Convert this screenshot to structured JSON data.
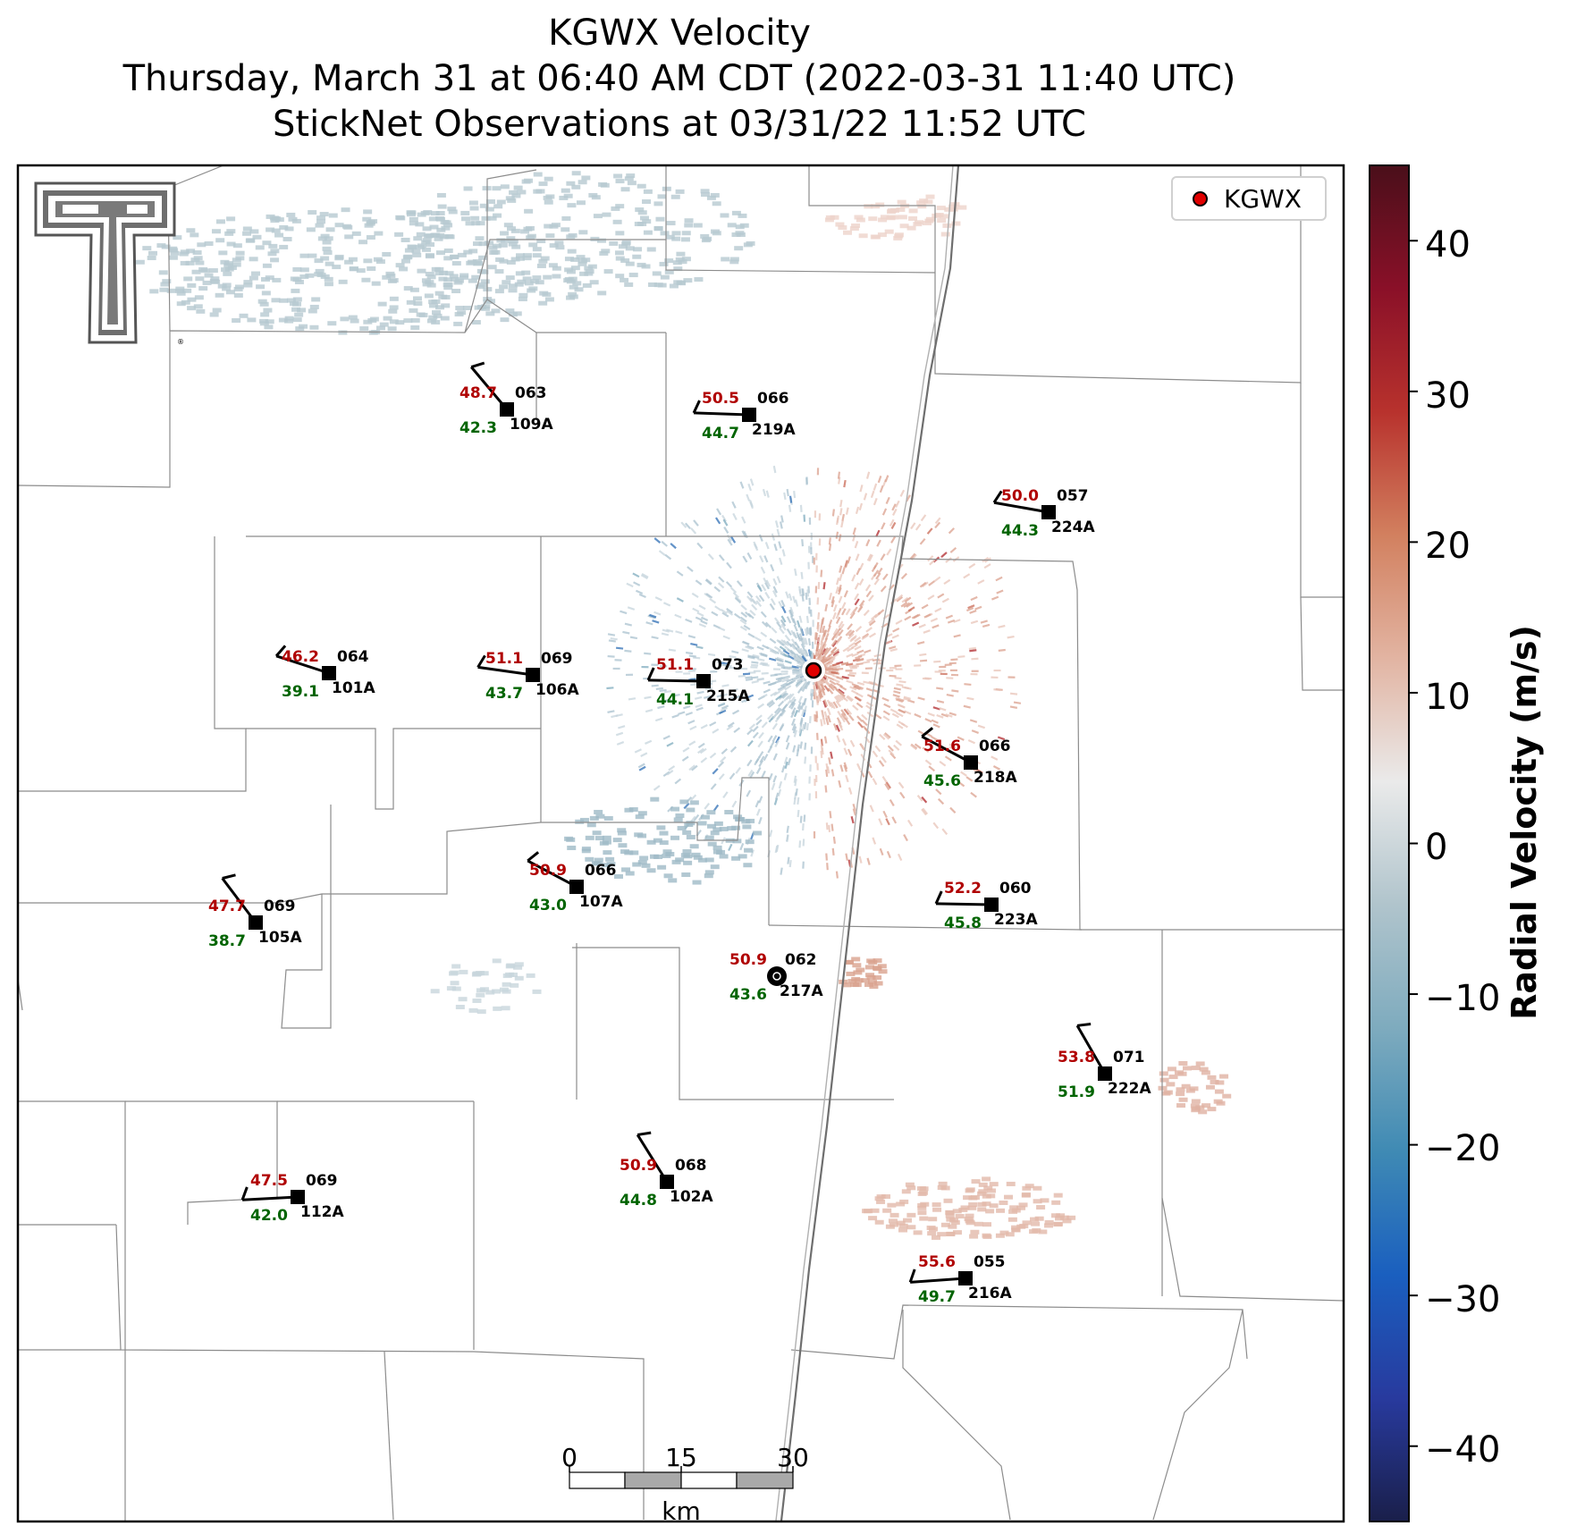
{
  "title": {
    "line1": "KGWX Velocity",
    "line2": "Thursday, March 31 at 06:40 AM CDT (2022-03-31 11:40 UTC)",
    "line3": "StickNet Observations at 03/31/22 11:52 UTC"
  },
  "legend": {
    "label": "KGWX",
    "marker_color": "#e00000"
  },
  "colorbar": {
    "label": "Radial Velocity (m/s)",
    "range": [
      -45,
      45
    ],
    "ticks": [
      "40",
      "30",
      "20",
      "10",
      "0",
      "−10",
      "−20",
      "−30",
      "−40"
    ],
    "colors": [
      "#4a0f1a",
      "#8a1028",
      "#b8322d",
      "#d2805f",
      "#e2b4a2",
      "#eaeaea",
      "#b0c4cc",
      "#7eabbe",
      "#3f8ab4",
      "#1a5fbf",
      "#283a9e",
      "#1a1f4a"
    ]
  },
  "scalebar": {
    "ticks": [
      "0",
      "15",
      "30"
    ],
    "unit": "km"
  },
  "logo": {
    "name": "Texas Tech Double T",
    "text": "TT"
  },
  "stations": [
    {
      "id": "109A",
      "temp": "48.7",
      "dew": "42.3",
      "pressure": "063",
      "marker": "square"
    },
    {
      "id": "219A",
      "temp": "50.5",
      "dew": "44.7",
      "pressure": "066",
      "marker": "square"
    },
    {
      "id": "224A",
      "temp": "50.0",
      "dew": "44.3",
      "pressure": "057",
      "marker": "square"
    },
    {
      "id": "101A",
      "temp": "46.2",
      "dew": "39.1",
      "pressure": "064",
      "marker": "square"
    },
    {
      "id": "106A",
      "temp": "51.1",
      "dew": "43.7",
      "pressure": "069",
      "marker": "square"
    },
    {
      "id": "215A",
      "temp": "51.1",
      "dew": "44.1",
      "pressure": "073",
      "marker": "square"
    },
    {
      "id": "218A",
      "temp": "51.6",
      "dew": "45.6",
      "pressure": "066",
      "marker": "square"
    },
    {
      "id": "105A",
      "temp": "47.7",
      "dew": "38.7",
      "pressure": "069",
      "marker": "square"
    },
    {
      "id": "107A",
      "temp": "50.9",
      "dew": "43.0",
      "pressure": "066",
      "marker": "square"
    },
    {
      "id": "223A",
      "temp": "52.2",
      "dew": "45.8",
      "pressure": "060",
      "marker": "square"
    },
    {
      "id": "217A",
      "temp": "50.9",
      "dew": "43.6",
      "pressure": "062",
      "marker": "calm"
    },
    {
      "id": "222A",
      "temp": "53.8",
      "dew": "51.9",
      "pressure": "071",
      "marker": "square"
    },
    {
      "id": "112A",
      "temp": "47.5",
      "dew": "42.0",
      "pressure": "069",
      "marker": "square"
    },
    {
      "id": "102A",
      "temp": "50.9",
      "dew": "44.8",
      "pressure": "068",
      "marker": "square"
    },
    {
      "id": "216A",
      "temp": "55.6",
      "dew": "49.7",
      "pressure": "055",
      "marker": "square"
    }
  ],
  "colors": {
    "temp": "#b00000",
    "dew": "#006400",
    "label": "#000000",
    "county_line": "#8c8c8c",
    "state_line": "#808080"
  }
}
